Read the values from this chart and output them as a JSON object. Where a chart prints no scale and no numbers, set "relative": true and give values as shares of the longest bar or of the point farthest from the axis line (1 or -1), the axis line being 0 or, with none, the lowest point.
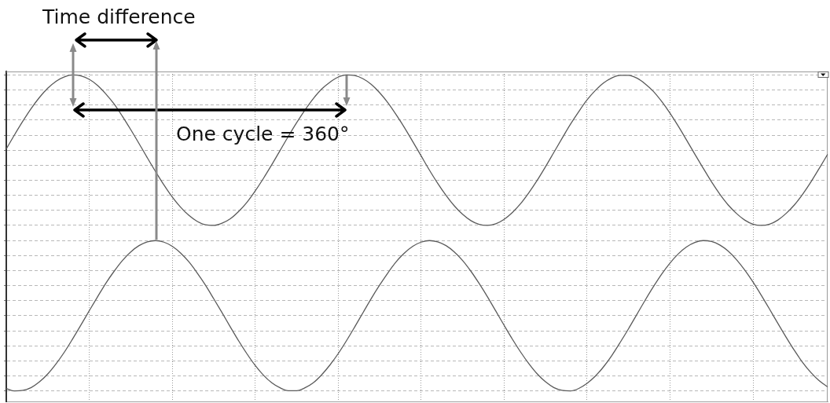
{
  "chart_data": {
    "type": "line",
    "relative": true,
    "grid": true,
    "annotations": [
      "Time difference",
      "One cycle = 360°"
    ],
    "categories": [
      null,
      null,
      null,
      null,
      null,
      null,
      null,
      null,
      null,
      null,
      null,
      null,
      null,
      null,
      null,
      null,
      null,
      null,
      null,
      null,
      null,
      null,
      null,
      null,
      null,
      null,
      null,
      null,
      null,
      null,
      null,
      null,
      null,
      null,
      null,
      null,
      null,
      null,
      null,
      null,
      null,
      null,
      null,
      null,
      null,
      null,
      null,
      null,
      null,
      null,
      null,
      null,
      null,
      null,
      null,
      null,
      null,
      null,
      null,
      null,
      null,
      null,
      null,
      null,
      null,
      null,
      null,
      null,
      null,
      null,
      null,
      null,
      null,
      null,
      null,
      null,
      null,
      null,
      null,
      null,
      null,
      null,
      null,
      null,
      null,
      null,
      null,
      null,
      null,
      null,
      null,
      null,
      null,
      null,
      null,
      null,
      null,
      null,
      null,
      null
    ],
    "series": [
      {
        "color": "#5a5a5a",
        "values": [
          0.766,
          0.811,
          0.854,
          0.894,
          0.929,
          0.958,
          0.98,
          0.994,
          1,
          0.997,
          0.986,
          0.967,
          0.94,
          0.908,
          0.869,
          0.827,
          0.783,
          0.738,
          0.694,
          0.652,
          0.614,
          0.582,
          0.556,
          0.537,
          0.526,
          0.524,
          0.531,
          0.545,
          0.568,
          0.597,
          0.633,
          0.673,
          0.716,
          0.761,
          0.806,
          0.849,
          0.889,
          0.925,
          0.955,
          0.977,
          0.993,
          1,
          0.998,
          0.988,
          0.97,
          0.944,
          0.912,
          0.874,
          0.833,
          0.789,
          0.744,
          0.699,
          0.657,
          0.619,
          0.586,
          0.559,
          0.539,
          0.527,
          0.524,
          0.529,
          0.543,
          0.565,
          0.593,
          0.628,
          0.667,
          0.71,
          0.755,
          0.8,
          0.844,
          0.884,
          0.921,
          0.951,
          0.975,
          0.991,
          0.999,
          0.999,
          0.99,
          0.972,
          0.948,
          0.916,
          0.879,
          0.838,
          0.794,
          0.749,
          0.705,
          0.662,
          0.623,
          0.589,
          0.562,
          0.541,
          0.528,
          0.524,
          0.528,
          0.541,
          0.562,
          0.589,
          0.623,
          0.662,
          0.705,
          0.749
        ]
      },
      {
        "color": "#5a5a5a",
        "values": [
          0.008,
          0,
          0.002,
          0.011,
          0.029,
          0.054,
          0.086,
          0.123,
          0.165,
          0.209,
          0.254,
          0.298,
          0.341,
          0.379,
          0.413,
          0.44,
          0.46,
          0.472,
          0.476,
          0.471,
          0.458,
          0.437,
          0.409,
          0.374,
          0.335,
          0.292,
          0.248,
          0.203,
          0.159,
          0.118,
          0.081,
          0.05,
          0.026,
          0.01,
          0.001,
          0.001,
          0.01,
          0.026,
          0.051,
          0.082,
          0.118,
          0.159,
          0.203,
          0.248,
          0.293,
          0.335,
          0.374,
          0.409,
          0.437,
          0.458,
          0.471,
          0.476,
          0.472,
          0.46,
          0.44,
          0.413,
          0.379,
          0.34,
          0.298,
          0.253,
          0.208,
          0.164,
          0.123,
          0.086,
          0.054,
          0.029,
          0.011,
          0.002,
          0,
          0.008,
          0.024,
          0.047,
          0.077,
          0.113,
          0.154,
          0.197,
          0.242,
          0.287,
          0.33,
          0.37,
          0.405,
          0.434,
          0.456,
          0.47,
          0.476,
          0.473,
          0.462,
          0.443,
          0.416,
          0.383,
          0.345,
          0.303,
          0.259,
          0.214,
          0.17,
          0.128,
          0.09,
          0.058,
          0.032,
          0.013
        ]
      }
    ]
  }
}
